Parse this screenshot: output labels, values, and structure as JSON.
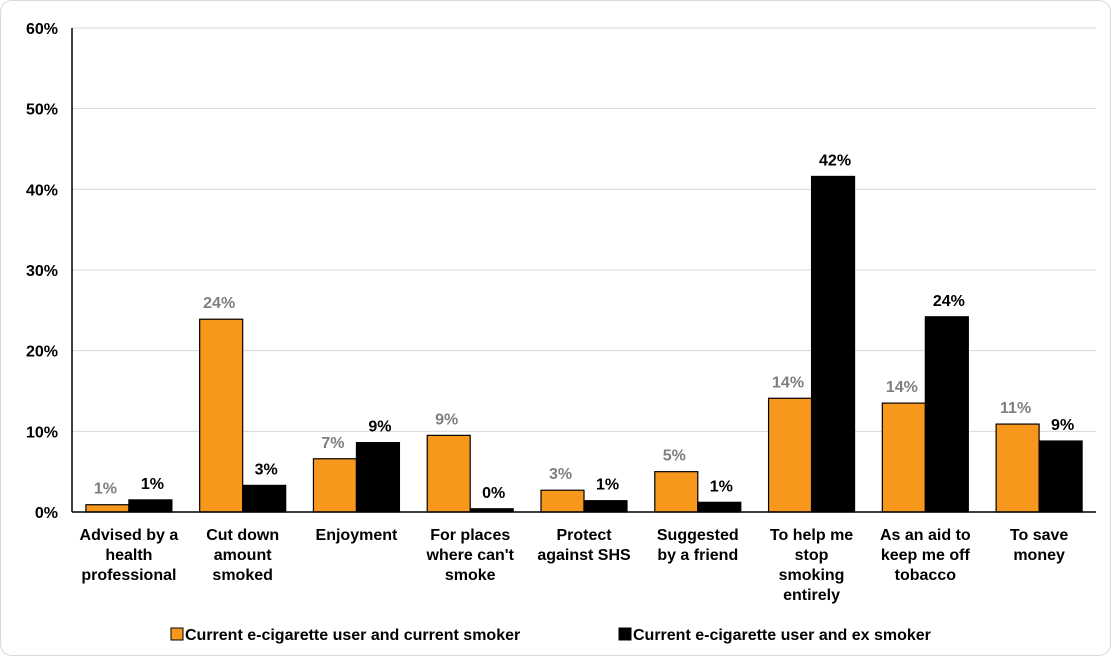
{
  "chart_data": {
    "type": "bar",
    "categories": [
      [
        "Advised by a",
        "health",
        "professional"
      ],
      [
        "Cut down",
        "amount",
        "smoked"
      ],
      [
        "Enjoyment"
      ],
      [
        "For places",
        "where can't",
        "smoke"
      ],
      [
        "Protect",
        "against SHS"
      ],
      [
        "Suggested",
        "by a friend"
      ],
      [
        "To help me",
        "stop",
        "smoking",
        "entirely"
      ],
      [
        "As an aid to",
        "keep me off",
        "tobacco"
      ],
      [
        "To save",
        "money"
      ]
    ],
    "series": [
      {
        "name": "Current e-cigarette user and current smoker",
        "color": "#F7981D",
        "label_color": "#7f7f7f",
        "values": [
          0.9,
          23.9,
          6.6,
          9.5,
          2.7,
          5.0,
          14.1,
          13.5,
          10.9
        ],
        "labels": [
          "1%",
          "24%",
          "7%",
          "9%",
          "3%",
          "5%",
          "14%",
          "14%",
          "11%"
        ]
      },
      {
        "name": "Current e-cigarette user and ex smoker",
        "color": "#000000",
        "label_color": "#000000",
        "values": [
          1.5,
          3.3,
          8.6,
          0.4,
          1.4,
          1.2,
          41.6,
          24.2,
          8.8
        ],
        "labels": [
          "1%",
          "3%",
          "9%",
          "0%",
          "1%",
          "1%",
          "42%",
          "24%",
          "9%"
        ]
      }
    ],
    "ylim": [
      0,
      60
    ],
    "yticks": [
      0,
      10,
      20,
      30,
      40,
      50,
      60
    ],
    "ytick_labels": [
      "0%",
      "10%",
      "20%",
      "30%",
      "40%",
      "50%",
      "60%"
    ],
    "grid": true,
    "legend_position": "bottom"
  }
}
